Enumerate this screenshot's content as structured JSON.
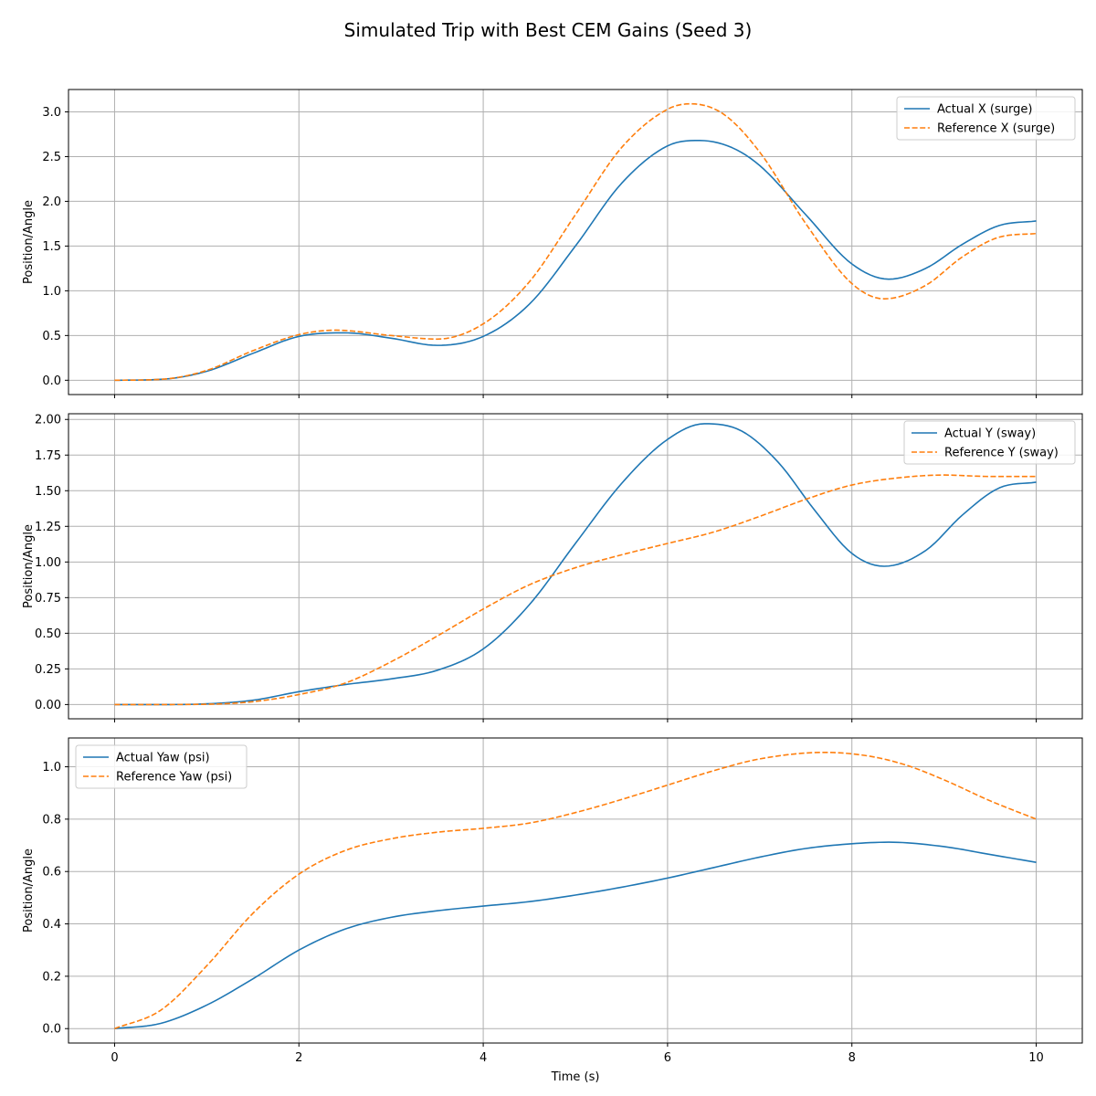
{
  "chart_data": {
    "type": "line",
    "title": "Simulated Trip with Best CEM Gains (Seed 3)",
    "xlabel": "Time (s)",
    "xlim": [
      -0.5,
      10.5
    ],
    "xticks": [
      0,
      2,
      4,
      6,
      8,
      10
    ],
    "xtick_labels": [
      "0",
      "2",
      "4",
      "6",
      "8",
      "10"
    ],
    "grid": true,
    "colors": {
      "actual": "#1f77b4",
      "reference": "#ff7f0e"
    },
    "subplots": [
      {
        "ylabel": "Position/Angle",
        "ylim": [
          -0.16,
          3.25
        ],
        "yticks": [
          0,
          0.5,
          1,
          1.5,
          2,
          2.5,
          3
        ],
        "ytick_labels": [
          "0.0",
          "0.5",
          "1.0",
          "1.5",
          "2.0",
          "2.5",
          "3.0"
        ],
        "legend_position": "upper right",
        "series": [
          {
            "name": "Actual X (surge)",
            "style": "solid",
            "color": "#1f77b4",
            "x": [
              0,
              0.5,
              1,
              1.5,
              2,
              2.5,
              3,
              3.5,
              4,
              4.5,
              5,
              5.5,
              6,
              6.35,
              6.7,
              7,
              7.5,
              8,
              8.4,
              8.8,
              9.2,
              9.6,
              10
            ],
            "y": [
              0,
              0.01,
              0.1,
              0.3,
              0.49,
              0.53,
              0.47,
              0.39,
              0.49,
              0.85,
              1.5,
              2.2,
              2.62,
              2.68,
              2.6,
              2.4,
              1.85,
              1.3,
              1.13,
              1.25,
              1.52,
              1.73,
              1.78
            ]
          },
          {
            "name": "Reference X (surge)",
            "style": "dashed",
            "color": "#ff7f0e",
            "x": [
              0,
              0.5,
              1,
              1.5,
              2,
              2.4,
              3,
              3.5,
              4,
              4.5,
              5,
              5.5,
              6,
              6.25,
              6.6,
              7,
              7.5,
              8,
              8.35,
              8.8,
              9.2,
              9.6,
              10
            ],
            "y": [
              0,
              0.01,
              0.11,
              0.33,
              0.51,
              0.56,
              0.5,
              0.46,
              0.63,
              1.1,
              1.85,
              2.6,
              3.03,
              3.09,
              2.98,
              2.55,
              1.75,
              1.08,
              0.91,
              1.06,
              1.38,
              1.6,
              1.64
            ]
          }
        ]
      },
      {
        "ylabel": "Position/Angle",
        "ylim": [
          -0.1,
          2.04
        ],
        "yticks": [
          0,
          0.25,
          0.5,
          0.75,
          1,
          1.25,
          1.5,
          1.75,
          2
        ],
        "ytick_labels": [
          "0.00",
          "0.25",
          "0.50",
          "0.75",
          "1.00",
          "1.25",
          "1.50",
          "1.75",
          "2.00"
        ],
        "legend_position": "upper right",
        "series": [
          {
            "name": "Actual Y (sway)",
            "style": "solid",
            "color": "#1f77b4",
            "x": [
              0,
              0.5,
              1,
              1.5,
              2,
              2.5,
              3,
              3.5,
              4,
              4.5,
              5,
              5.5,
              6,
              6.4,
              6.8,
              7.2,
              7.6,
              8,
              8.35,
              8.8,
              9.2,
              9.6,
              10
            ],
            "y": [
              0,
              0,
              0.005,
              0.03,
              0.09,
              0.14,
              0.18,
              0.24,
              0.39,
              0.7,
              1.13,
              1.55,
              1.86,
              1.97,
              1.92,
              1.7,
              1.36,
              1.06,
              0.97,
              1.08,
              1.33,
              1.52,
              1.56
            ]
          },
          {
            "name": "Reference Y (sway)",
            "style": "dashed",
            "color": "#ff7f0e",
            "x": [
              0,
              0.5,
              1,
              1.5,
              2,
              2.5,
              3,
              3.5,
              4,
              4.5,
              5,
              5.5,
              6,
              6.5,
              7,
              7.5,
              8,
              8.5,
              9,
              9.5,
              10
            ],
            "y": [
              0,
              0,
              0.002,
              0.02,
              0.07,
              0.15,
              0.3,
              0.48,
              0.67,
              0.84,
              0.96,
              1.05,
              1.13,
              1.21,
              1.32,
              1.44,
              1.54,
              1.59,
              1.61,
              1.6,
              1.6
            ]
          }
        ]
      },
      {
        "ylabel": "Position/Angle",
        "ylim": [
          -0.055,
          1.11
        ],
        "yticks": [
          0,
          0.2,
          0.4,
          0.6,
          0.8,
          1
        ],
        "ytick_labels": [
          "0.0",
          "0.2",
          "0.4",
          "0.6",
          "0.8",
          "1.0"
        ],
        "legend_position": "upper left",
        "series": [
          {
            "name": "Actual Yaw (psi)",
            "style": "solid",
            "color": "#1f77b4",
            "x": [
              0,
              0.5,
              1,
              1.5,
              2,
              2.5,
              3,
              3.5,
              4,
              4.5,
              5,
              5.5,
              6,
              6.5,
              7,
              7.5,
              8,
              8.4,
              9,
              9.5,
              10
            ],
            "y": [
              0,
              0.02,
              0.09,
              0.19,
              0.3,
              0.38,
              0.425,
              0.45,
              0.468,
              0.485,
              0.51,
              0.54,
              0.575,
              0.615,
              0.655,
              0.688,
              0.706,
              0.712,
              0.695,
              0.665,
              0.635
            ]
          },
          {
            "name": "Reference Yaw (psi)",
            "style": "dashed",
            "color": "#ff7f0e",
            "x": [
              0,
              0.5,
              1,
              1.5,
              2,
              2.5,
              3,
              3.5,
              4,
              4.5,
              5,
              5.5,
              6,
              6.5,
              7,
              7.7,
              8.2,
              8.6,
              9,
              9.5,
              10
            ],
            "y": [
              0,
              0.07,
              0.24,
              0.44,
              0.59,
              0.68,
              0.725,
              0.75,
              0.765,
              0.785,
              0.825,
              0.875,
              0.93,
              0.985,
              1.03,
              1.055,
              1.04,
              1.005,
              0.95,
              0.87,
              0.8
            ]
          }
        ]
      }
    ]
  }
}
